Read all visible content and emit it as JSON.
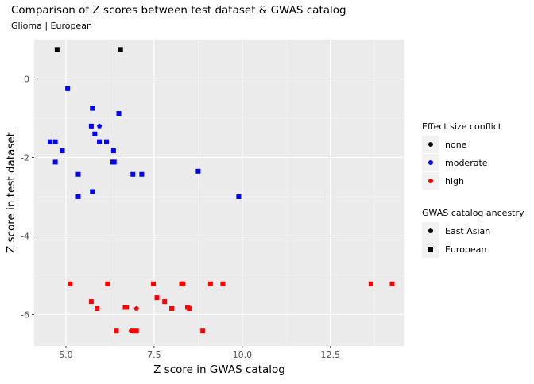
{
  "chart_data": {
    "type": "scatter",
    "title": "Comparison of Z scores between test dataset & GWAS catalog",
    "subtitle": "Glioma | European",
    "xlabel": "Z score in GWAS catalog",
    "ylabel": "Z score in test dataset",
    "xlim": [
      4.1,
      14.6
    ],
    "ylim": [
      -6.8,
      1.0
    ],
    "xticks": [
      5.0,
      7.5,
      10.0,
      12.5
    ],
    "xtick_labels": [
      "5.0",
      "7.5",
      "10.0",
      "12.5"
    ],
    "yticks": [
      0,
      -2,
      -4,
      -6
    ],
    "ytick_labels": [
      "0",
      "-2",
      "-4",
      "-6"
    ],
    "grid": true,
    "legend_placement": "right",
    "colors": {
      "none": "#000000",
      "moderate": "#0000ff",
      "high": "#ff0000"
    },
    "legends": [
      {
        "title": "Effect size conflict",
        "entries": [
          {
            "label": "none",
            "key": "none",
            "shape": "circle"
          },
          {
            "label": "moderate",
            "key": "moderate",
            "shape": "circle"
          },
          {
            "label": "high",
            "key": "high",
            "shape": "circle"
          }
        ]
      },
      {
        "title": "GWAS catalog ancestry",
        "entries": [
          {
            "label": "East Asian",
            "key": "east_asian",
            "shape": "pentagon"
          },
          {
            "label": "European",
            "key": "european",
            "shape": "square"
          }
        ]
      }
    ],
    "points": [
      {
        "x": 4.75,
        "y": 0.75,
        "conflict": "none",
        "ancestry": "european"
      },
      {
        "x": 6.55,
        "y": 0.75,
        "conflict": "none",
        "ancestry": "european"
      },
      {
        "x": 5.05,
        "y": -0.25,
        "conflict": "moderate",
        "ancestry": "european"
      },
      {
        "x": 5.75,
        "y": -0.75,
        "conflict": "moderate",
        "ancestry": "european"
      },
      {
        "x": 6.5,
        "y": -0.88,
        "conflict": "moderate",
        "ancestry": "european"
      },
      {
        "x": 5.72,
        "y": -1.2,
        "conflict": "moderate",
        "ancestry": "european"
      },
      {
        "x": 5.95,
        "y": -1.2,
        "conflict": "moderate",
        "ancestry": "east_asian"
      },
      {
        "x": 5.82,
        "y": -1.4,
        "conflict": "moderate",
        "ancestry": "european"
      },
      {
        "x": 4.55,
        "y": -1.6,
        "conflict": "moderate",
        "ancestry": "european"
      },
      {
        "x": 4.7,
        "y": -1.6,
        "conflict": "moderate",
        "ancestry": "european"
      },
      {
        "x": 5.95,
        "y": -1.6,
        "conflict": "moderate",
        "ancestry": "european"
      },
      {
        "x": 6.15,
        "y": -1.6,
        "conflict": "moderate",
        "ancestry": "european"
      },
      {
        "x": 4.9,
        "y": -1.83,
        "conflict": "moderate",
        "ancestry": "european"
      },
      {
        "x": 6.35,
        "y": -1.83,
        "conflict": "moderate",
        "ancestry": "european"
      },
      {
        "x": 4.7,
        "y": -2.12,
        "conflict": "moderate",
        "ancestry": "european"
      },
      {
        "x": 6.33,
        "y": -2.12,
        "conflict": "moderate",
        "ancestry": "european"
      },
      {
        "x": 6.37,
        "y": -2.12,
        "conflict": "moderate",
        "ancestry": "european"
      },
      {
        "x": 8.75,
        "y": -2.35,
        "conflict": "moderate",
        "ancestry": "european"
      },
      {
        "x": 5.35,
        "y": -2.43,
        "conflict": "moderate",
        "ancestry": "european"
      },
      {
        "x": 6.9,
        "y": -2.43,
        "conflict": "moderate",
        "ancestry": "european"
      },
      {
        "x": 7.15,
        "y": -2.43,
        "conflict": "moderate",
        "ancestry": "european"
      },
      {
        "x": 5.75,
        "y": -2.87,
        "conflict": "moderate",
        "ancestry": "european"
      },
      {
        "x": 5.35,
        "y": -3.0,
        "conflict": "moderate",
        "ancestry": "european"
      },
      {
        "x": 9.9,
        "y": -3.0,
        "conflict": "moderate",
        "ancestry": "european"
      },
      {
        "x": 5.12,
        "y": -5.22,
        "conflict": "high",
        "ancestry": "european"
      },
      {
        "x": 6.18,
        "y": -5.22,
        "conflict": "high",
        "ancestry": "european"
      },
      {
        "x": 7.48,
        "y": -5.22,
        "conflict": "high",
        "ancestry": "european"
      },
      {
        "x": 8.28,
        "y": -5.22,
        "conflict": "high",
        "ancestry": "european"
      },
      {
        "x": 8.32,
        "y": -5.22,
        "conflict": "high",
        "ancestry": "european"
      },
      {
        "x": 9.1,
        "y": -5.22,
        "conflict": "high",
        "ancestry": "european"
      },
      {
        "x": 9.45,
        "y": -5.22,
        "conflict": "high",
        "ancestry": "european"
      },
      {
        "x": 13.65,
        "y": -5.22,
        "conflict": "high",
        "ancestry": "european"
      },
      {
        "x": 14.25,
        "y": -5.22,
        "conflict": "high",
        "ancestry": "european"
      },
      {
        "x": 7.58,
        "y": -5.57,
        "conflict": "high",
        "ancestry": "european"
      },
      {
        "x": 5.72,
        "y": -5.67,
        "conflict": "high",
        "ancestry": "european"
      },
      {
        "x": 7.8,
        "y": -5.67,
        "conflict": "high",
        "ancestry": "european"
      },
      {
        "x": 6.68,
        "y": -5.82,
        "conflict": "high",
        "ancestry": "european"
      },
      {
        "x": 6.72,
        "y": -5.82,
        "conflict": "high",
        "ancestry": "european"
      },
      {
        "x": 5.88,
        "y": -5.85,
        "conflict": "high",
        "ancestry": "european"
      },
      {
        "x": 7.0,
        "y": -5.85,
        "conflict": "high",
        "ancestry": "east_asian"
      },
      {
        "x": 8.0,
        "y": -5.85,
        "conflict": "high",
        "ancestry": "european"
      },
      {
        "x": 8.45,
        "y": -5.82,
        "conflict": "high",
        "ancestry": "european"
      },
      {
        "x": 8.5,
        "y": -5.85,
        "conflict": "high",
        "ancestry": "european"
      },
      {
        "x": 6.43,
        "y": -6.42,
        "conflict": "high",
        "ancestry": "european"
      },
      {
        "x": 6.85,
        "y": -6.42,
        "conflict": "high",
        "ancestry": "east_asian"
      },
      {
        "x": 6.92,
        "y": -6.42,
        "conflict": "high",
        "ancestry": "european"
      },
      {
        "x": 7.0,
        "y": -6.42,
        "conflict": "high",
        "ancestry": "european"
      },
      {
        "x": 8.88,
        "y": -6.42,
        "conflict": "high",
        "ancestry": "european"
      }
    ]
  }
}
